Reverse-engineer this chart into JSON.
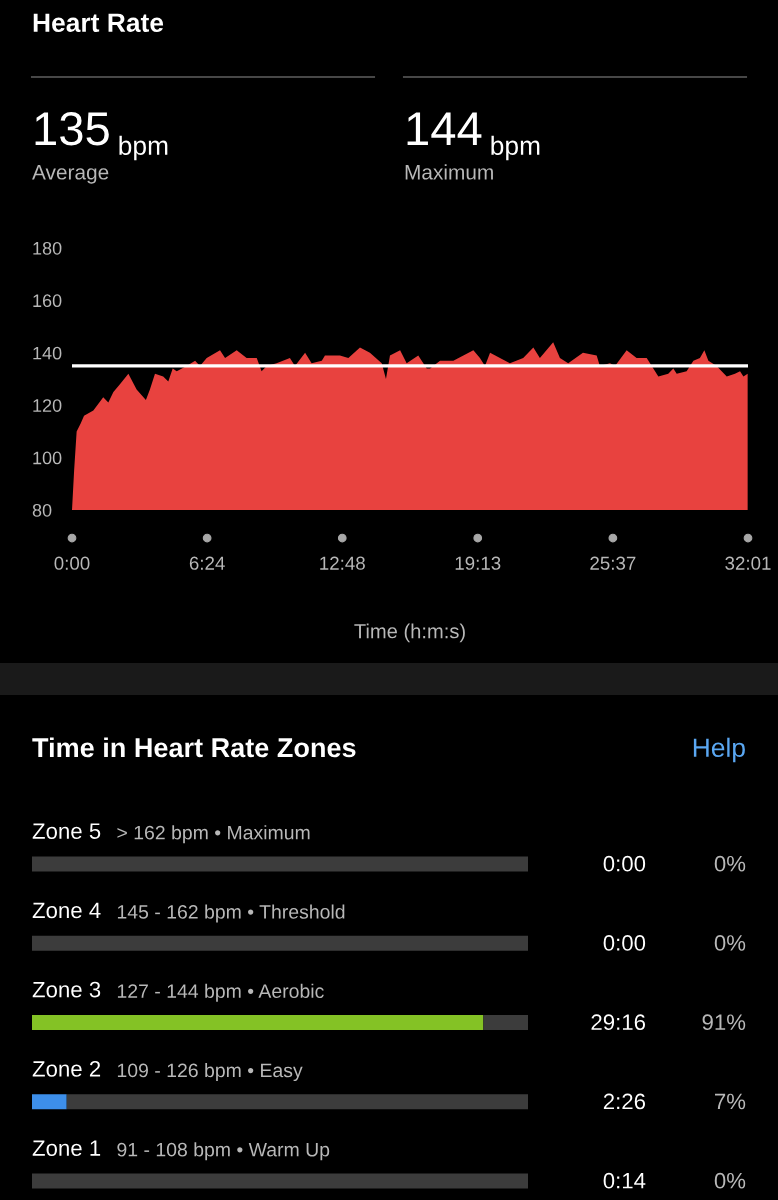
{
  "chart_data": [
    {
      "type": "area",
      "title": "Heart Rate",
      "annotations": [
        "135",
        "bpm",
        "Average",
        "144",
        "bpm",
        "Maximum"
      ],
      "xlabel": "Time (h:m:s)",
      "color": "#e8423f",
      "x": [
        0,
        0.1,
        0.22,
        0.41,
        0.57,
        1.01,
        1.48,
        1.72,
        1.96,
        2.27,
        2.67,
        3.06,
        3.5,
        3.69,
        3.93,
        4.32,
        4.56,
        4.77,
        4.96,
        5.43,
        5.83,
        6.06,
        6.38,
        7.01,
        7.25,
        7.8,
        8.27,
        8.75,
        8.98,
        9.22,
        9.69,
        10.32,
        10.56,
        11.04,
        11.35,
        11.83,
        11.98,
        12.69,
        13.09,
        13.64,
        14.11,
        14.67,
        14.87,
        15.06,
        15.54,
        15.85,
        16.4,
        16.8,
        16.96,
        17.43,
        18.06,
        19.01,
        19.32,
        19.56,
        19.8,
        20.27,
        20.74,
        21.37,
        21.85,
        22.16,
        22.79,
        23.11,
        23.5,
        24.2,
        24.85,
        25.0,
        25.48,
        25.72,
        26.27,
        26.74,
        27.22,
        27.77,
        28.24,
        28.48,
        28.64,
        29.11,
        29.43,
        29.74,
        29.95,
        30.14,
        30.53,
        31.01,
        31.4,
        31.64,
        31.8,
        32.0
      ],
      "values": [
        80,
        95,
        110,
        113,
        116,
        118,
        123,
        121,
        125,
        128,
        132,
        126,
        122,
        126,
        132,
        131,
        129,
        134,
        133,
        135,
        137,
        135,
        138,
        141,
        138,
        141,
        138,
        138,
        133,
        135,
        136,
        138,
        135,
        140,
        136,
        137,
        139,
        139,
        138,
        142,
        140,
        136,
        130,
        139,
        141,
        136,
        139,
        134,
        134,
        137,
        137,
        141,
        138,
        135,
        140,
        138,
        136,
        138,
        142,
        138,
        144,
        138,
        136,
        140,
        139,
        135,
        136,
        135,
        141,
        138,
        138,
        131,
        132,
        134,
        132,
        133,
        137,
        138,
        141,
        137,
        135,
        131,
        132,
        133,
        131,
        132
      ],
      "xlim": [
        0,
        32.0167
      ],
      "xticks": [
        {
          "value": 0,
          "label": "0:00"
        },
        {
          "value": 6.4,
          "label": "6:24"
        },
        {
          "value": 12.8,
          "label": "12:48"
        },
        {
          "value": 19.2167,
          "label": "19:13"
        },
        {
          "value": 25.6167,
          "label": "25:37"
        },
        {
          "value": 32.0167,
          "label": "32:01"
        }
      ],
      "ylim": [
        80,
        180
      ],
      "yticks": [
        80,
        100,
        120,
        140,
        160,
        180
      ],
      "ref_lines": [
        {
          "axis": "y",
          "value": 135,
          "color": "#ffffff"
        }
      ]
    },
    {
      "type": "bar",
      "orientation": "horizontal",
      "stacked": true,
      "title": "Time in Heart Rate Zones",
      "annotations": [
        "Help",
        "> 162 bpm • Maximum",
        "0:00",
        "145 - 162 bpm • Threshold",
        "0:00",
        "127 - 144 bpm • Aerobic",
        "29:16",
        "109 - 126 bpm • Easy",
        "2:26",
        "91 - 108 bpm • Warm Up",
        "0:14"
      ],
      "categories": [
        "Zone 5",
        "Zone 4",
        "Zone 3",
        "Zone 2",
        "Zone 1"
      ],
      "series": [
        {
          "colors": [
            "#e8382f",
            "#f7941d",
            "#84c225",
            "#3d8fea",
            "#d0d0d0"
          ],
          "values": [
            0,
            0,
            91,
            7,
            0
          ],
          "value_labels": [
            "0%",
            "0%",
            "91%",
            "7%",
            "0%"
          ]
        },
        {
          "color": "#3c3c3c",
          "values": [
            100,
            100,
            9,
            93,
            100
          ]
        }
      ],
      "xlim": [
        0,
        100
      ]
    }
  ]
}
